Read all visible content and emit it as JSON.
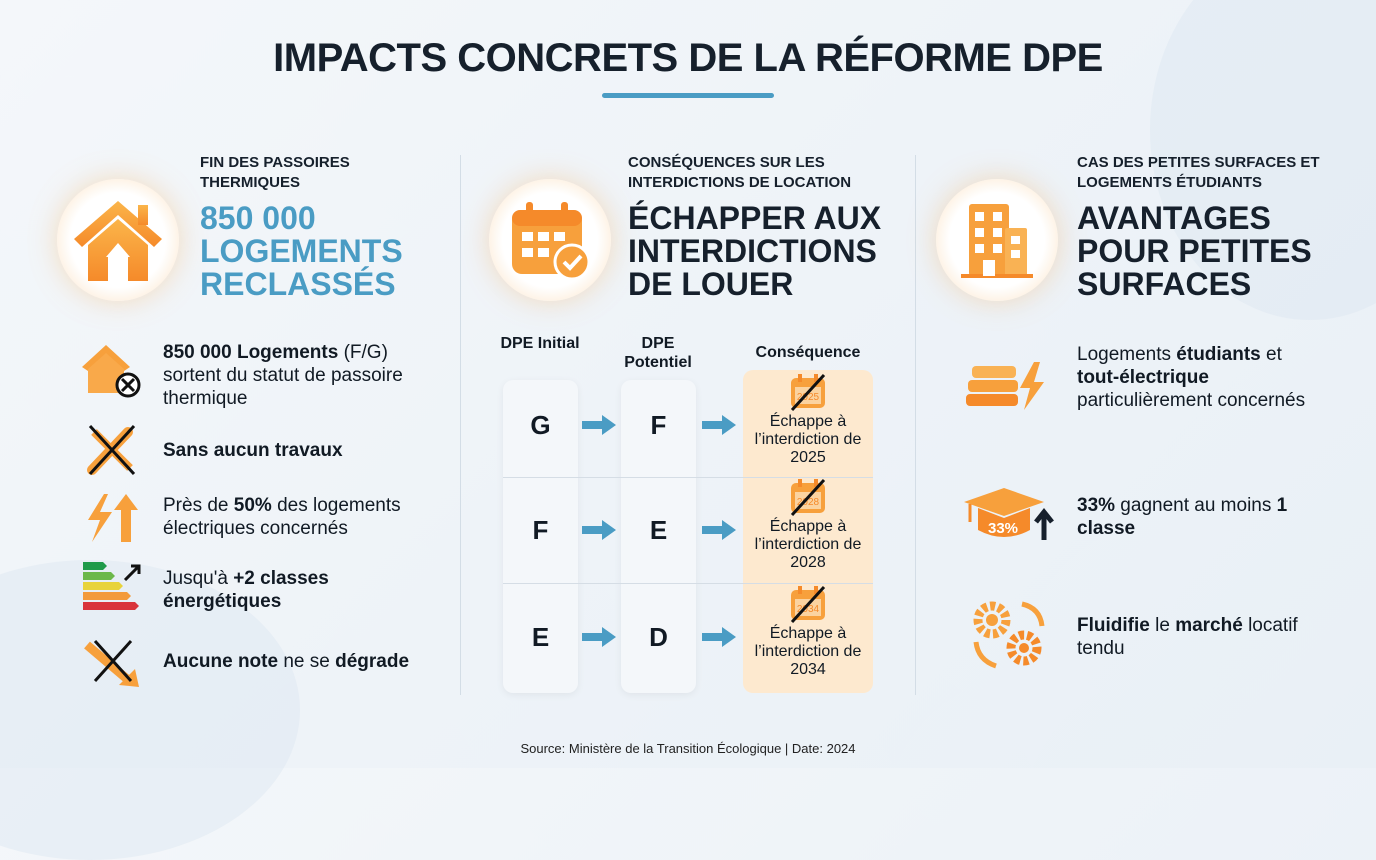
{
  "title": "IMPACTS CONCRETS DE LA RÉFORME DPE",
  "colors": {
    "accent_blue": "#4a9cc4",
    "accent_orange": "#f6a03c",
    "dark": "#16202c"
  },
  "col1": {
    "kicker": "FIN DES PASSOIRES THERMIQUES",
    "headline": [
      "850 000",
      "LOGEMENTS",
      "RECLASSÉS"
    ],
    "icon": "house-icon",
    "items": [
      {
        "icon": "house-cross-icon",
        "bold": "850 000 Logements",
        "text": " (F/G) sortent du statut de passoire thermique"
      },
      {
        "icon": "tools-crossed-icon",
        "bold": "Sans aucun travaux",
        "text": ""
      },
      {
        "icon": "bolt-up-arrow-icon",
        "pre": "Près de ",
        "bold": "50%",
        "text": " des logements électriques concernés"
      },
      {
        "icon": "energy-label-icon",
        "pre": "Jusqu'à ",
        "bold": "+2 classes énergétiques",
        "text": ""
      },
      {
        "icon": "down-arrow-crossed-icon",
        "bold": "Aucune note",
        "text": " ne se ",
        "bold2": "dégrade"
      }
    ]
  },
  "col2": {
    "kicker": "CONSÉQUENCES SUR LES INTERDICTIONS DE LOCATION",
    "headline": [
      "ÉCHAPPER AUX",
      "INTERDICTIONS",
      "DE LOUER"
    ],
    "icon": "calendar-check-icon",
    "table": {
      "headers": [
        "DPE Initial",
        "DPE Potentiel",
        "Conséquence"
      ],
      "rows": [
        {
          "initial": "G",
          "potential": "F",
          "consequence": "Échappe à l’interdiction de 2025",
          "year": "2025"
        },
        {
          "initial": "F",
          "potential": "E",
          "consequence": "Échappe à l’interdiction de 2028",
          "year": "2028"
        },
        {
          "initial": "E",
          "potential": "D",
          "consequence": "Échappe à l’interdiction de 2034",
          "year": "2034"
        }
      ]
    }
  },
  "col3": {
    "kicker": "CAS DES PETITES SURFACES ET LOGEMENTS ÉTUDIANTS",
    "headline": [
      "AVANTAGES",
      "POUR PETITES",
      "SURFACES"
    ],
    "icon": "building-icon",
    "items": [
      {
        "icon": "books-bolt-icon",
        "pre": "Logements ",
        "bold": "étudiants",
        "mid": " et ",
        "bold2": "tout-électrique",
        "text": " particulièrement concernés"
      },
      {
        "icon": "graduation-cap-icon",
        "badge": "33%",
        "bold": "33%",
        "text": " gagnent au moins ",
        "bold2": "1 classe"
      },
      {
        "icon": "gears-cycle-icon",
        "bold": "Fluidifie",
        "text": " le ",
        "bold2": "marché",
        "text2": " locatif tendu"
      }
    ]
  },
  "source": "Source: Ministère de la Transition Écologique | Date: 2024"
}
